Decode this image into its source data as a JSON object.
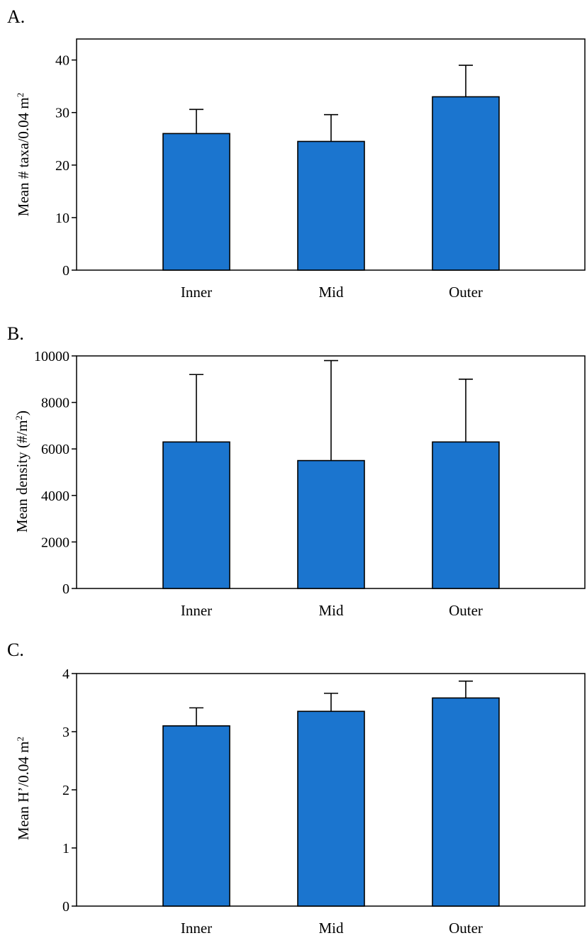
{
  "colors": {
    "bar_fill": "#1b75cf",
    "stroke": "#000000",
    "background": "#ffffff"
  },
  "chart_data": [
    {
      "type": "bar",
      "panel_label": "A.",
      "ylabel_main": "Mean # taxa/0.04 m",
      "ylabel_sup": "2",
      "ylabel_tail": "",
      "categories": [
        "Inner",
        "Mid",
        "Outer"
      ],
      "values": [
        26,
        24.5,
        33
      ],
      "error_upper": [
        30.6,
        29.6,
        39.0
      ],
      "ylim": [
        0,
        44
      ],
      "yticks": [
        0,
        10,
        20,
        30,
        40
      ],
      "ytick_labels": [
        "0",
        "10",
        "20",
        "30",
        "40"
      ],
      "grid": false,
      "legend": "none"
    },
    {
      "type": "bar",
      "panel_label": "B.",
      "ylabel_main": "Mean density (#/m",
      "ylabel_sup": "2",
      "ylabel_tail": ")",
      "categories": [
        "Inner",
        "Mid",
        "Outer"
      ],
      "values": [
        6300,
        5500,
        6300
      ],
      "error_upper": [
        9200,
        9800,
        9000
      ],
      "ylim": [
        0,
        10000
      ],
      "yticks": [
        0,
        2000,
        4000,
        6000,
        8000,
        10000
      ],
      "ytick_labels": [
        "0",
        "2000",
        "4000",
        "6000",
        "8000",
        "10000"
      ],
      "grid": false,
      "legend": "none"
    },
    {
      "type": "bar",
      "panel_label": "C.",
      "ylabel_main": "Mean H’/0.04 m",
      "ylabel_sup": "2",
      "ylabel_tail": "",
      "categories": [
        "Inner",
        "Mid",
        "Outer"
      ],
      "values": [
        3.1,
        3.35,
        3.58
      ],
      "error_upper": [
        3.41,
        3.66,
        3.87
      ],
      "ylim": [
        0,
        4
      ],
      "yticks": [
        0,
        1,
        2,
        3,
        4
      ],
      "ytick_labels": [
        "0",
        "1",
        "2",
        "3",
        "4"
      ],
      "grid": false,
      "legend": "none"
    }
  ]
}
